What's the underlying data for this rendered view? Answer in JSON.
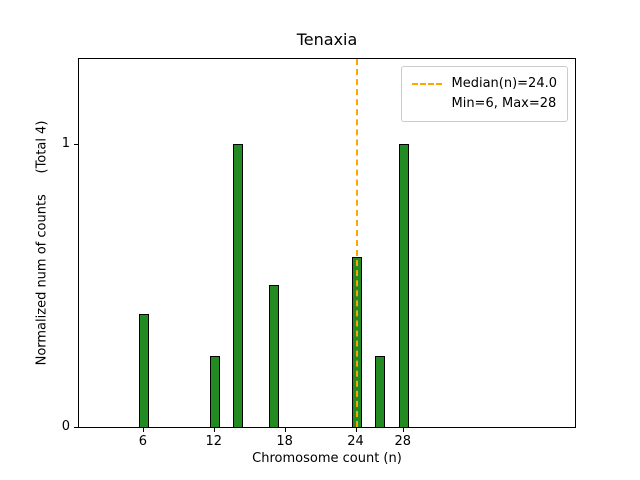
{
  "chart_data": {
    "type": "bar",
    "title": "Tenaxia",
    "xlabel": "Chromosome count (n)",
    "ylabel": "Normalized num of counts     (Total 4)",
    "bars": [
      {
        "n": 6,
        "value": 0.4
      },
      {
        "n": 12,
        "value": 0.25
      },
      {
        "n": 14,
        "value": 1.0
      },
      {
        "n": 17,
        "value": 0.5
      },
      {
        "n": 24,
        "value": 0.6
      },
      {
        "n": 26,
        "value": 0.25
      },
      {
        "n": 28,
        "value": 1.0
      }
    ],
    "bar_width": 0.85,
    "bar_color": "#228B22",
    "bar_edge_color": "#000000",
    "median": 24.0,
    "median_line_color": "#ffa500",
    "xlim": [
      0.5,
      42.5
    ],
    "ylim": [
      0,
      1.3
    ],
    "xticks": [
      6,
      12,
      18,
      24,
      28
    ],
    "yticks": [
      0,
      1
    ],
    "grid": false,
    "legend_position": "top-right",
    "legend": {
      "line1": "Median(n)=24.0",
      "line2": "Min=6, Max=28"
    }
  }
}
